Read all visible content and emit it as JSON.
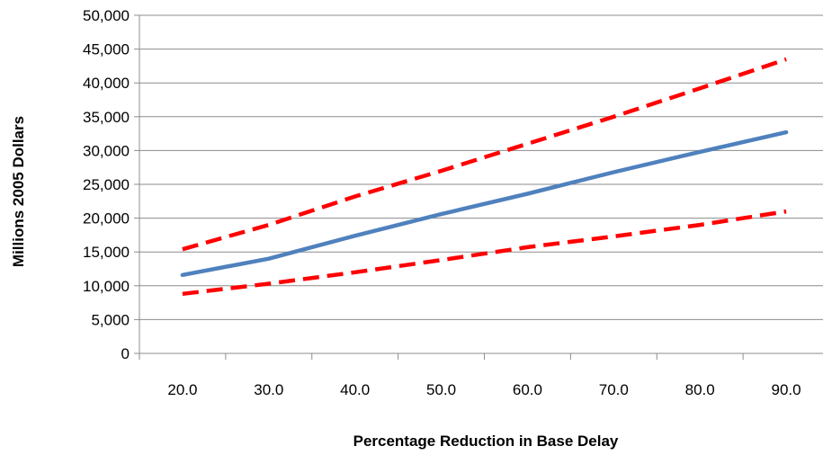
{
  "chart_data": {
    "type": "line",
    "title": "",
    "xlabel": "Percentage Reduction in Base Delay",
    "ylabel": "Millions 2005 Dollars",
    "categories": [
      "20.0",
      "30.0",
      "40.0",
      "50.0",
      "60.0",
      "70.0",
      "80.0",
      "90.0"
    ],
    "ylim": [
      0,
      50000
    ],
    "yticks": [
      0,
      5000,
      10000,
      15000,
      20000,
      25000,
      30000,
      35000,
      40000,
      45000,
      50000
    ],
    "ytick_labels": [
      "0",
      "5,000",
      "10,000",
      "15,000",
      "20,000",
      "25,000",
      "30,000",
      "35,000",
      "40,000",
      "45,000",
      "50,000"
    ],
    "grid": true,
    "legend": "none",
    "series": [
      {
        "style": "dashed",
        "color": "#ff0000",
        "values": [
          15400,
          19000,
          23200,
          27000,
          31000,
          35000,
          39200,
          43500
        ]
      },
      {
        "style": "solid",
        "color": "#4f81bd",
        "values": [
          11600,
          14000,
          17400,
          20600,
          23600,
          26800,
          29800,
          32700
        ]
      },
      {
        "style": "dashed",
        "color": "#ff0000",
        "values": [
          8800,
          10300,
          12000,
          13800,
          15700,
          17300,
          19000,
          21000
        ]
      }
    ]
  }
}
